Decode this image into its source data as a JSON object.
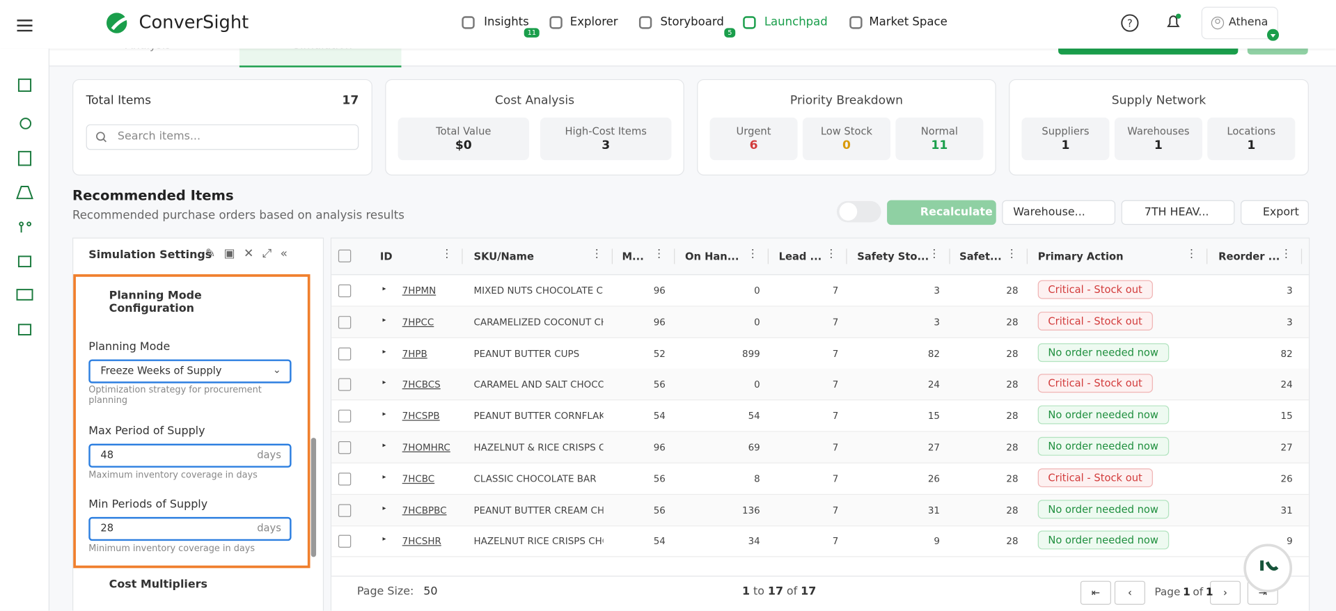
{
  "nav": {
    "logo": "ConverSight",
    "items": [
      {
        "label": "Insights",
        "badge": 11
      },
      {
        "label": "Explorer"
      },
      {
        "label": "Storyboard",
        "badge": 5
      },
      {
        "label": "Launchpad"
      },
      {
        "label": "Market Space"
      }
    ],
    "user": "Athena"
  },
  "tabs": [
    "Analysis",
    "Simulation"
  ],
  "summary": {
    "total_items": {
      "label": "Total Items",
      "value": 17,
      "search_placeholder": "Search items..."
    },
    "cost_analysis": {
      "title": "Cost Analysis",
      "stats": [
        {
          "label": "Total Value",
          "value": "$0"
        },
        {
          "label": "High-Cost Items",
          "value": 3
        }
      ]
    },
    "priority": {
      "title": "Priority Breakdown",
      "stats": [
        {
          "label": "Urgent",
          "value": 6
        },
        {
          "label": "Low Stock",
          "value": 0
        },
        {
          "label": "Normal",
          "value": 11
        }
      ]
    },
    "supply": {
      "title": "Supply Network",
      "stats": [
        {
          "label": "Suppliers",
          "value": 1
        },
        {
          "label": "Warehouses",
          "value": 1
        },
        {
          "label": "Locations",
          "value": 1
        }
      ]
    }
  },
  "section": {
    "title": "Recommended Items",
    "subtitle": "Recommended purchase orders based on analysis results"
  },
  "toolbar": {
    "recalculate": "Recalculate",
    "warehouse_filter": "Warehouse...",
    "location_filter": "7TH HEAV...",
    "export": "Export"
  },
  "settings": {
    "title": "Simulation Settings",
    "group": "Planning Mode Configuration",
    "planning_mode": {
      "label": "Planning Mode",
      "value": "Freeze Weeks of Supply",
      "help": "Optimization strategy for procurement planning"
    },
    "max_period": {
      "label": "Max Period of Supply",
      "value": 48,
      "unit": "days",
      "help": "Maximum inventory coverage in days"
    },
    "min_period": {
      "label": "Min Periods of Supply",
      "value": 28,
      "unit": "days",
      "help": "Minimum inventory coverage in days"
    },
    "next_group": "Cost Multipliers"
  },
  "table": {
    "columns": [
      "ID",
      "SKU/Name",
      "M...",
      "On Han...",
      "Lead ...",
      "Safety Sto...",
      "Safet...",
      "Primary Action",
      "Reorder ..."
    ],
    "rows": [
      [
        "7HPMN",
        "MIXED NUTS CHOCOLATE CL",
        96,
        0,
        7,
        3,
        28,
        "Critical - Stock out",
        3
      ],
      [
        "7HPCC",
        "CARAMELIZED COCONUT CH",
        96,
        0,
        7,
        3,
        28,
        "Critical - Stock out",
        3
      ],
      [
        "7HPB",
        "PEANUT BUTTER CUPS",
        52,
        899,
        7,
        82,
        28,
        "No order needed now",
        82
      ],
      [
        "7HCBCS",
        "CARAMEL AND SALT CHOCO",
        56,
        0,
        7,
        24,
        28,
        "Critical - Stock out",
        24
      ],
      [
        "7HCSPB",
        "PEANUT BUTTER CORNFLAK",
        54,
        54,
        7,
        15,
        28,
        "No order needed now",
        15
      ],
      [
        "7HOMHRC",
        "HAZELNUT & RICE CRISPS CI",
        96,
        69,
        7,
        27,
        28,
        "No order needed now",
        27
      ],
      [
        "7HCBC",
        "CLASSIC CHOCOLATE BAR",
        56,
        8,
        7,
        26,
        28,
        "Critical - Stock out",
        26
      ],
      [
        "7HCBPBC",
        "PEANUT BUTTER CREAM CH",
        56,
        136,
        7,
        31,
        28,
        "No order needed now",
        31
      ],
      [
        "7HCSHR",
        "HAZELNUT RICE CRISPS CHO",
        54,
        34,
        7,
        9,
        28,
        "No order needed now",
        9
      ]
    ]
  },
  "footer": {
    "page_size_label": "Page Size:",
    "page_size": 50,
    "from": 1,
    "to_word": "to",
    "to": 17,
    "of_word": "of",
    "total": 17,
    "page_word": "Page",
    "page": 1,
    "page_of_word": "of",
    "pages": 1
  }
}
